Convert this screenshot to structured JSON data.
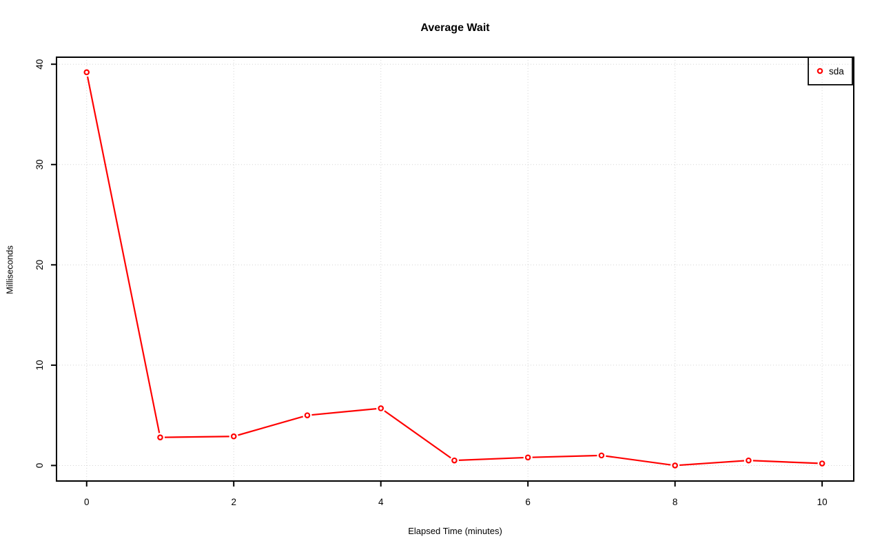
{
  "chart_data": {
    "type": "line",
    "title": "Average Wait",
    "xlabel": "Elapsed Time (minutes)",
    "ylabel": "Milliseconds",
    "x": [
      0,
      1,
      2,
      3,
      4,
      5,
      6,
      7,
      8,
      9,
      10
    ],
    "series": [
      {
        "name": "sda",
        "values": [
          39.2,
          2.8,
          2.9,
          5.0,
          5.7,
          0.5,
          0.8,
          1.0,
          0.0,
          0.5,
          0.2
        ]
      }
    ],
    "xticks": [
      0,
      2,
      4,
      6,
      8,
      10
    ],
    "yticks": [
      0,
      10,
      20,
      30,
      40
    ],
    "xlim": [
      -0.41,
      10.43
    ],
    "ylim": [
      -1.55,
      40.7
    ],
    "grid": "dotted",
    "legend_position": "topright",
    "marker": "open-circle",
    "colors": {
      "series": "#FF0000",
      "grid": "#D3D3D3",
      "axis": "#000000",
      "text": "#000000",
      "background": "#FFFFFF"
    }
  }
}
